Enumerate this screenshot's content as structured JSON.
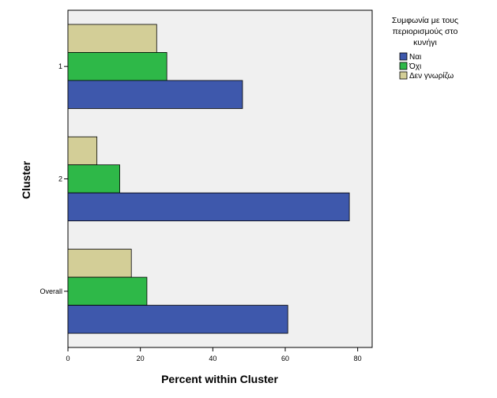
{
  "chart_data": {
    "type": "bar",
    "orientation": "horizontal",
    "categories": [
      "1",
      "2",
      "Overall"
    ],
    "series": [
      {
        "name": "Δεν γνωρίζω",
        "color": "#d3ce97",
        "values": [
          24.5,
          8.0,
          17.5
        ]
      },
      {
        "name": "Όχι",
        "color": "#2eb848",
        "values": [
          27.3,
          14.3,
          21.8
        ]
      },
      {
        "name": "Ναι",
        "color": "#3e58ac",
        "values": [
          48.2,
          77.7,
          60.7
        ]
      }
    ],
    "xlabel": "Percent within Cluster",
    "ylabel": "Cluster",
    "xlim": [
      0,
      84
    ],
    "xticks": [
      0,
      20,
      40,
      60,
      80
    ],
    "grid": false,
    "legend": {
      "title_lines": [
        "Συμφωνία με τους",
        "περιορισμούς στο",
        "κυνήγι"
      ],
      "placement": "right",
      "entries": [
        {
          "label": "Ναι",
          "color": "#3e58ac"
        },
        {
          "label": "Όχι",
          "color": "#2eb848"
        },
        {
          "label": "Δεν γνωρίζω",
          "color": "#d3ce97"
        }
      ]
    },
    "plot_background": "#f0f0f0"
  }
}
